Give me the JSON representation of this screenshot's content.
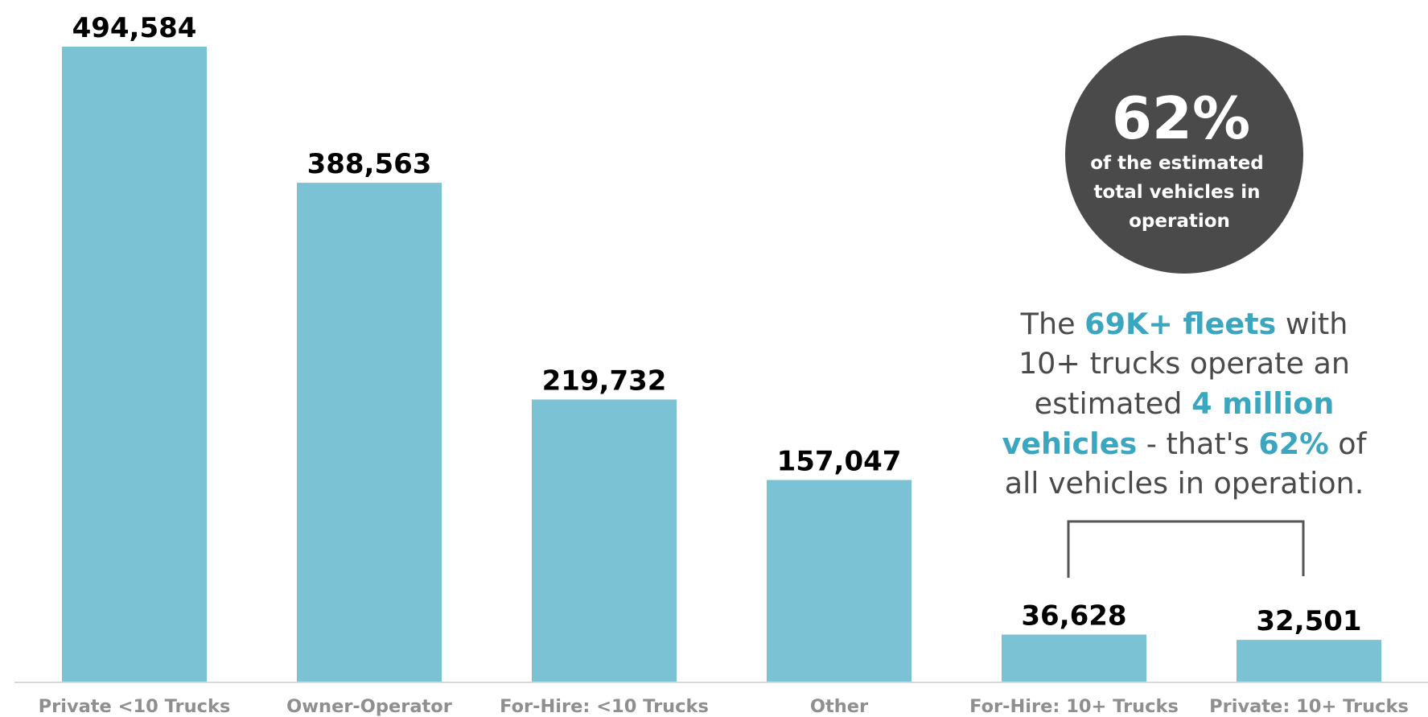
{
  "chart_data": {
    "type": "bar",
    "categories": [
      "Private <10 Trucks",
      "Owner-Operator",
      "For-Hire: <10 Trucks",
      "Other",
      "For-Hire: 10+ Trucks",
      "Private: 10+ Trucks"
    ],
    "values": [
      494584,
      388563,
      219732,
      157047,
      36628,
      32501
    ],
    "data_labels": [
      "494,584",
      "388,563",
      "219,732",
      "157,047",
      "36,628",
      "32,501"
    ],
    "ylim": [
      0,
      494584
    ],
    "grid": false,
    "colors": {
      "bar": "#7bc2d4",
      "highlight": "#3aa6c0",
      "circle": "#4a4a4a"
    }
  },
  "callout": {
    "percent": "62%",
    "lines": [
      "of the estimated",
      "total vehicles in",
      "operation"
    ]
  },
  "note": {
    "lines": [
      [
        {
          "t": "The "
        },
        {
          "t": "69K+ fleets",
          "hl": true
        },
        {
          "t": " with"
        }
      ],
      [
        {
          "t": "10+ trucks operate an"
        }
      ],
      [
        {
          "t": "estimated "
        },
        {
          "t": "4 million",
          "hl": true
        }
      ],
      [
        {
          "t": "vehicles",
          "hl": true
        },
        {
          "t": " - that's "
        },
        {
          "t": "62%",
          "hl": true
        },
        {
          "t": " of"
        }
      ],
      [
        {
          "t": "all vehicles in operation."
        }
      ]
    ]
  }
}
